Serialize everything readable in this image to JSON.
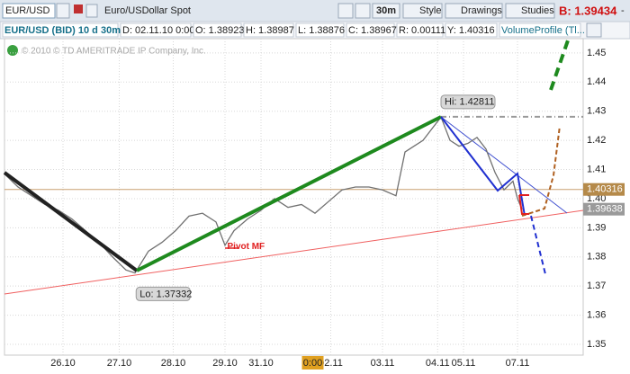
{
  "toolbar": {
    "symbol": "EUR/USD",
    "description": "Euro/USDollar Spot",
    "interval": "30m",
    "buttons": [
      "Style",
      "Drawings",
      "Studies"
    ],
    "bid": "B: 1.39434",
    "minimize": "-"
  },
  "info_bar": [
    "EUR/USD (BID) 10 d 30m",
    "D: 02.11.10 0:00",
    "O: 1.38923",
    "H: 1.38987",
    "L: 1.38876",
    "C: 1.38967",
    "R: 0.00111",
    "Y: 1.40316",
    "VolumeProfile (Tl..."
  ],
  "chart_data": {
    "type": "line",
    "watermark": "© 2010 © TD AMERITRADE IP Company, Inc.",
    "x": [
      0,
      12,
      24,
      36,
      48,
      60,
      72,
      84,
      96,
      108,
      116,
      128,
      140,
      152,
      164,
      176,
      188,
      196,
      204,
      216,
      228,
      240,
      252,
      264,
      276,
      288,
      300,
      312,
      324,
      336,
      348,
      356,
      364,
      372,
      380,
      388,
      396,
      404,
      412,
      420,
      428,
      436,
      444,
      452,
      456,
      460
    ],
    "series": [
      {
        "name": "EUR/USD",
        "color": "#707070",
        "values": [
          1.4085,
          1.404,
          1.401,
          1.398,
          1.396,
          1.393,
          1.389,
          1.385,
          1.38,
          1.3755,
          1.3745,
          1.382,
          1.385,
          1.389,
          1.394,
          1.395,
          1.392,
          1.384,
          1.389,
          1.393,
          1.396,
          1.4,
          1.397,
          1.398,
          1.395,
          1.399,
          1.403,
          1.404,
          1.404,
          1.403,
          1.401,
          1.416,
          1.418,
          1.42,
          1.424,
          1.428,
          1.42,
          1.418,
          1.419,
          1.421,
          1.417,
          1.409,
          1.403,
          1.406,
          1.4,
          1.39638
        ]
      }
    ],
    "xlim": [
      0,
      514.4
    ],
    "xticks": [
      {
        "value": 52,
        "label": "26.10"
      },
      {
        "value": 102,
        "label": "27.10"
      },
      {
        "value": 150,
        "label": "28.10"
      },
      {
        "value": 196,
        "label": "29.10"
      },
      {
        "value": 228,
        "label": "31.10"
      },
      {
        "value": 290,
        "label": "02.11"
      },
      {
        "value": 336,
        "label": "03.11"
      },
      {
        "value": 385,
        "label": "04.11"
      },
      {
        "value": 408,
        "label": "05.11"
      },
      {
        "value": 456,
        "label": "07.11"
      }
    ],
    "cursor_x": {
      "value": 274,
      "label": "0:00"
    },
    "ylim": [
      1.3463,
      1.4549
    ],
    "yticks": [
      1.45,
      1.44,
      1.43,
      1.42,
      1.41,
      {
        "value": 1.4,
        "label": "1.40"
      },
      1.39,
      1.38,
      1.37,
      1.36,
      1.35
    ],
    "grid": true,
    "annotations": [
      {
        "text": "Hi: 1.42811",
        "x": 388,
        "y": 1.42811
      },
      {
        "text": "Lo: 1.37332",
        "x": 117,
        "y": 1.37332
      },
      {
        "text": "Pivot MF",
        "x": 198,
        "y": 1.3835
      }
    ],
    "price_labels": [
      {
        "value": 1.40316,
        "label": "1.40316",
        "color": "#b58a4a"
      },
      {
        "value": 1.39638,
        "label": "1.39638",
        "color": "#9a9a9a"
      }
    ]
  }
}
